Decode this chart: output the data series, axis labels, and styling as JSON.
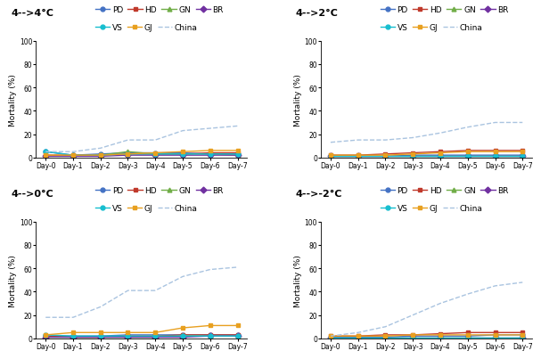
{
  "subplots": [
    {
      "title": "4-->4°C",
      "series": {
        "PD": [
          5,
          2,
          3,
          4,
          4,
          4,
          3,
          3
        ],
        "HD": [
          2,
          2,
          2,
          3,
          3,
          3,
          4,
          4
        ],
        "GN": [
          1,
          1,
          2,
          5,
          3,
          3,
          3,
          2
        ],
        "BR": [
          1,
          1,
          1,
          2,
          2,
          2,
          2,
          2
        ],
        "VS": [
          5,
          2,
          2,
          3,
          3,
          3,
          3,
          3
        ],
        "GJ": [
          2,
          2,
          2,
          3,
          4,
          5,
          6,
          6
        ],
        "China": [
          5,
          5,
          8,
          15,
          15,
          23,
          25,
          27
        ]
      }
    },
    {
      "title": "4-->2°C",
      "series": {
        "PD": [
          1,
          1,
          1,
          2,
          2,
          2,
          2,
          2
        ],
        "HD": [
          2,
          2,
          3,
          4,
          5,
          6,
          6,
          6
        ],
        "GN": [
          1,
          1,
          1,
          1,
          1,
          1,
          1,
          1
        ],
        "BR": [
          1,
          1,
          1,
          1,
          1,
          1,
          1,
          1
        ],
        "VS": [
          1,
          1,
          1,
          1,
          1,
          1,
          1,
          1
        ],
        "GJ": [
          2,
          2,
          2,
          3,
          4,
          5,
          5,
          5
        ],
        "China": [
          13,
          15,
          15,
          17,
          21,
          26,
          30,
          30
        ]
      }
    },
    {
      "title": "4-->0°C",
      "series": {
        "PD": [
          2,
          2,
          2,
          3,
          3,
          3,
          3,
          3
        ],
        "HD": [
          2,
          1,
          1,
          2,
          2,
          3,
          3,
          3
        ],
        "GN": [
          1,
          1,
          1,
          1,
          1,
          2,
          2,
          2
        ],
        "BR": [
          1,
          1,
          1,
          1,
          1,
          1,
          2,
          2
        ],
        "VS": [
          3,
          2,
          2,
          2,
          2,
          2,
          2,
          2
        ],
        "GJ": [
          3,
          5,
          5,
          5,
          5,
          9,
          11,
          11
        ],
        "China": [
          18,
          18,
          27,
          41,
          41,
          53,
          59,
          61
        ]
      }
    },
    {
      "title": "4-->-2°C",
      "series": {
        "PD": [
          1,
          1,
          1,
          2,
          2,
          2,
          3,
          3
        ],
        "HD": [
          2,
          2,
          3,
          3,
          4,
          5,
          5,
          5
        ],
        "GN": [
          1,
          1,
          1,
          1,
          1,
          1,
          1,
          1
        ],
        "BR": [
          1,
          1,
          1,
          1,
          1,
          1,
          1,
          1
        ],
        "VS": [
          1,
          1,
          1,
          1,
          1,
          1,
          1,
          1
        ],
        "GJ": [
          2,
          2,
          2,
          3,
          3,
          3,
          3,
          3
        ],
        "China": [
          2,
          5,
          10,
          20,
          30,
          38,
          45,
          48
        ]
      }
    }
  ],
  "series_styles": {
    "PD": {
      "color": "#4472c4",
      "marker": "o",
      "linestyle": "-"
    },
    "HD": {
      "color": "#c0392b",
      "marker": "s",
      "linestyle": "-"
    },
    "GN": {
      "color": "#70ad47",
      "marker": "^",
      "linestyle": "-"
    },
    "BR": {
      "color": "#7030a0",
      "marker": "D",
      "linestyle": "-"
    },
    "VS": {
      "color": "#17becf",
      "marker": "o",
      "linestyle": "-"
    },
    "GJ": {
      "color": "#e8a020",
      "marker": "s",
      "linestyle": "-"
    },
    "China": {
      "color": "#aac4e0",
      "marker": "none",
      "linestyle": "--"
    }
  },
  "x_labels": [
    "Day-0",
    "Day-1",
    "Day-2",
    "Day-3",
    "Day-4",
    "Day-5",
    "Day-6",
    "Day-7"
  ],
  "ylim": [
    0,
    100
  ],
  "yticks": [
    0,
    20,
    40,
    60,
    80,
    100
  ],
  "ylabel": "Mortality (%)",
  "marker_size": 3.5,
  "linewidth": 1.0,
  "title_fontsize": 8,
  "label_fontsize": 6.5,
  "tick_fontsize": 5.5,
  "legend_fontsize": 6.5
}
